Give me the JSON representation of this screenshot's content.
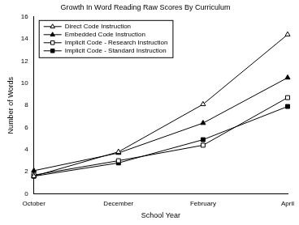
{
  "chart_data": {
    "type": "line",
    "title": "Growth In Word Reading Raw Scores By Curriculum",
    "x_label": "School Year",
    "y_label": "Number of Words",
    "categories": [
      "October",
      "December",
      "February",
      "April"
    ],
    "series": [
      {
        "name": "Direct Code Instruction",
        "color": "#000000",
        "marker": "triangle-open",
        "values": [
          1.6,
          3.8,
          8.1,
          14.4
        ]
      },
      {
        "name": "Embedded Code Instruction",
        "color": "#000000",
        "marker": "triangle",
        "values": [
          2.1,
          3.7,
          6.4,
          10.5
        ]
      },
      {
        "name": "Implicit Code - Research Instruction",
        "color": "#000000",
        "marker": "square-open",
        "values": [
          1.7,
          3.0,
          4.4,
          8.7
        ]
      },
      {
        "name": "Implicit Code - Standard Instruction",
        "color": "#000000",
        "marker": "square",
        "values": [
          1.6,
          2.8,
          4.9,
          7.9
        ]
      }
    ],
    "ylim": [
      0,
      16
    ],
    "yticks": [
      0,
      2,
      4,
      6,
      8,
      10,
      12,
      14,
      16
    ],
    "grid": false,
    "legend": "top-left"
  }
}
